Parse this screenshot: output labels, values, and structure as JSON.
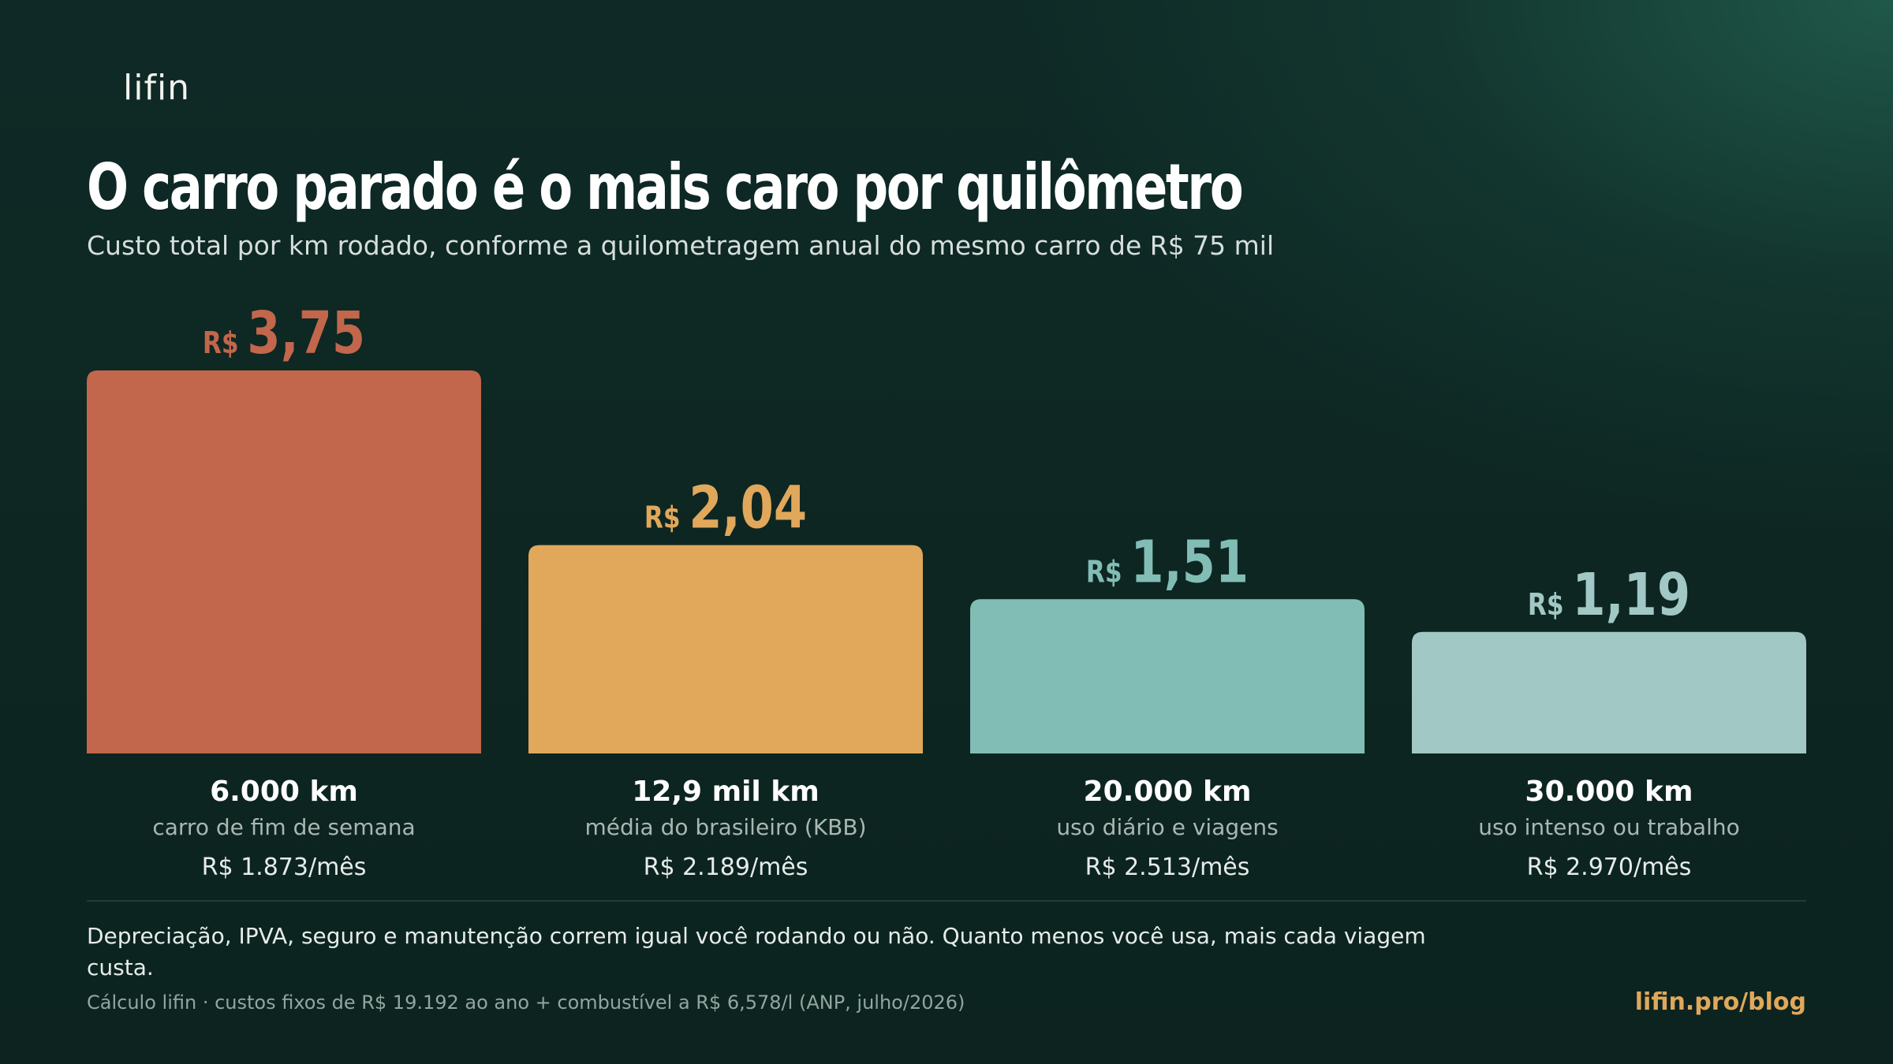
{
  "brand": {
    "logo": "lifin",
    "site": "lifin.pro/blog"
  },
  "header": {
    "title": "O carro parado é o mais caro por quilômetro",
    "subtitle": "Custo total por km rodado, conforme a quilometragem anual do mesmo carro de R$ 75 mil"
  },
  "colors": {
    "bar1": "#c2664c",
    "bar2": "#e1a85b",
    "bar3": "#82bdb5",
    "bar4": "#a1c8c4"
  },
  "chart_data": {
    "type": "bar",
    "currency_prefix": "R$",
    "categories": [
      "6.000 km",
      "12,9 mil km",
      "20.000 km",
      "30.000 km"
    ],
    "descriptions": [
      "carro de fim de semana",
      "média do brasileiro (KBB)",
      "uso diário e viagens",
      "uso intenso ou trabalho"
    ],
    "monthly": [
      "R$ 1.873/mês",
      "R$ 2.189/mês",
      "R$ 2.513/mês",
      "R$ 2.970/mês"
    ],
    "values": [
      3.75,
      2.04,
      1.51,
      1.19
    ],
    "value_labels": [
      "3,75",
      "2,04",
      "1,51",
      "1,19"
    ],
    "ylim": [
      0,
      3.75
    ],
    "grid": false
  },
  "footer": {
    "note": "Depreciação, IPVA, seguro e manutenção correm igual você rodando ou não. Quanto menos você usa, mais cada viagem custa.",
    "source": "Cálculo lifin · custos fixos de R$ 19.192 ao ano + combustível a R$ 6,578/l (ANP, julho/2026)"
  }
}
